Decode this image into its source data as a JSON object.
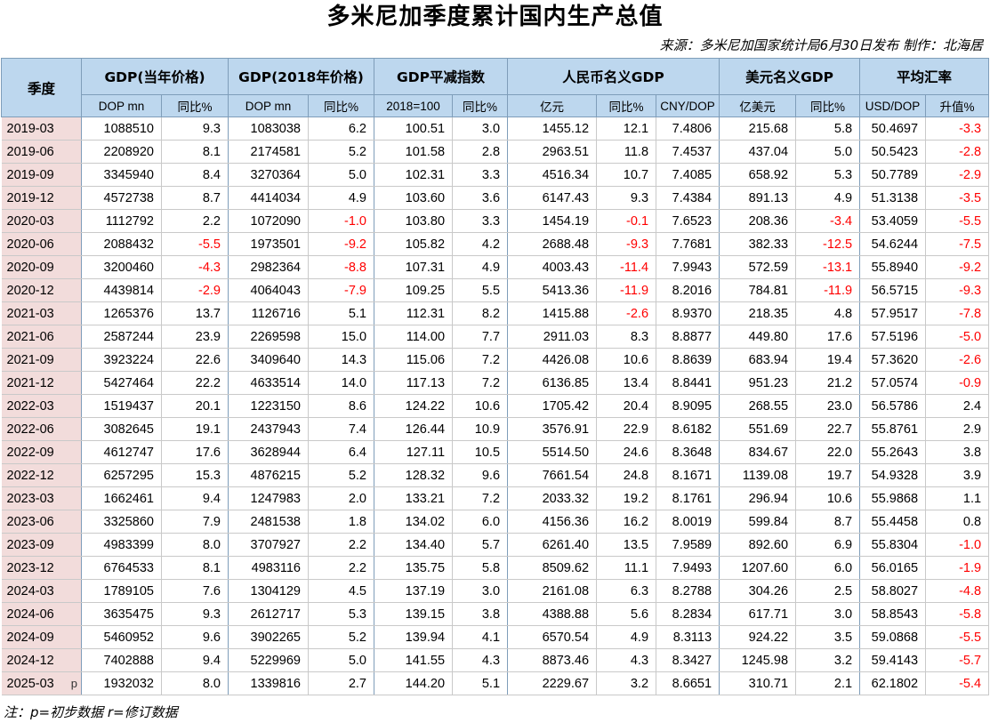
{
  "title": "多米尼加季度累计国内生产总值",
  "source": "来源：多米尼加国家统计局6月30日发布 制作：北海居",
  "headers": {
    "quarter": "季度",
    "groups": [
      {
        "label": "GDP(当年价格)",
        "subs": [
          "DOP mn",
          "同比%"
        ]
      },
      {
        "label": "GDP(2018年价格)",
        "subs": [
          "DOP mn",
          "同比%"
        ]
      },
      {
        "label": "GDP平减指数",
        "subs": [
          "2018=100",
          "同比%"
        ]
      },
      {
        "label": "人民币名义GDP",
        "subs": [
          "亿元",
          "同比%",
          "CNY/DOP"
        ]
      },
      {
        "label": "美元名义GDP",
        "subs": [
          "亿美元",
          "同比%"
        ]
      },
      {
        "label": "平均汇率",
        "subs": [
          "USD/DOP",
          "升值%"
        ]
      }
    ]
  },
  "rows": [
    [
      "2019-03",
      "",
      "1088510",
      "9.3",
      "1083038",
      "6.2",
      "100.51",
      "3.0",
      "1455.12",
      "12.1",
      "7.4806",
      "215.68",
      "5.8",
      "50.4697",
      "-3.3"
    ],
    [
      "2019-06",
      "",
      "2208920",
      "8.1",
      "2174581",
      "5.2",
      "101.58",
      "2.8",
      "2963.51",
      "11.8",
      "7.4537",
      "437.04",
      "5.0",
      "50.5423",
      "-2.8"
    ],
    [
      "2019-09",
      "",
      "3345940",
      "8.4",
      "3270364",
      "5.0",
      "102.31",
      "3.3",
      "4516.34",
      "10.7",
      "7.4085",
      "658.92",
      "5.3",
      "50.7789",
      "-2.9"
    ],
    [
      "2019-12",
      "",
      "4572738",
      "8.7",
      "4414034",
      "4.9",
      "103.60",
      "3.6",
      "6147.43",
      "9.3",
      "7.4384",
      "891.13",
      "4.9",
      "51.3138",
      "-3.5"
    ],
    [
      "2020-03",
      "",
      "1112792",
      "2.2",
      "1072090",
      "-1.0",
      "103.80",
      "3.3",
      "1454.19",
      "-0.1",
      "7.6523",
      "208.36",
      "-3.4",
      "53.4059",
      "-5.5"
    ],
    [
      "2020-06",
      "",
      "2088432",
      "-5.5",
      "1973501",
      "-9.2",
      "105.82",
      "4.2",
      "2688.48",
      "-9.3",
      "7.7681",
      "382.33",
      "-12.5",
      "54.6244",
      "-7.5"
    ],
    [
      "2020-09",
      "",
      "3200460",
      "-4.3",
      "2982364",
      "-8.8",
      "107.31",
      "4.9",
      "4003.43",
      "-11.4",
      "7.9943",
      "572.59",
      "-13.1",
      "55.8940",
      "-9.2"
    ],
    [
      "2020-12",
      "",
      "4439814",
      "-2.9",
      "4064043",
      "-7.9",
      "109.25",
      "5.5",
      "5413.36",
      "-11.9",
      "8.2016",
      "784.81",
      "-11.9",
      "56.5715",
      "-9.3"
    ],
    [
      "2021-03",
      "",
      "1265376",
      "13.7",
      "1126716",
      "5.1",
      "112.31",
      "8.2",
      "1415.88",
      "-2.6",
      "8.9370",
      "218.35",
      "4.8",
      "57.9517",
      "-7.8"
    ],
    [
      "2021-06",
      "",
      "2587244",
      "23.9",
      "2269598",
      "15.0",
      "114.00",
      "7.7",
      "2911.03",
      "8.3",
      "8.8877",
      "449.80",
      "17.6",
      "57.5196",
      "-5.0"
    ],
    [
      "2021-09",
      "",
      "3923224",
      "22.6",
      "3409640",
      "14.3",
      "115.06",
      "7.2",
      "4426.08",
      "10.6",
      "8.8639",
      "683.94",
      "19.4",
      "57.3620",
      "-2.6"
    ],
    [
      "2021-12",
      "",
      "5427464",
      "22.2",
      "4633514",
      "14.0",
      "117.13",
      "7.2",
      "6136.85",
      "13.4",
      "8.8441",
      "951.23",
      "21.2",
      "57.0574",
      "-0.9"
    ],
    [
      "2022-03",
      "",
      "1519437",
      "20.1",
      "1223150",
      "8.6",
      "124.22",
      "10.6",
      "1705.42",
      "20.4",
      "8.9095",
      "268.55",
      "23.0",
      "56.5786",
      "2.4"
    ],
    [
      "2022-06",
      "",
      "3082645",
      "19.1",
      "2437943",
      "7.4",
      "126.44",
      "10.9",
      "3576.91",
      "22.9",
      "8.6182",
      "551.69",
      "22.7",
      "55.8761",
      "2.9"
    ],
    [
      "2022-09",
      "",
      "4612747",
      "17.6",
      "3628944",
      "6.4",
      "127.11",
      "10.5",
      "5514.50",
      "24.6",
      "8.3648",
      "834.67",
      "22.0",
      "55.2643",
      "3.8"
    ],
    [
      "2022-12",
      "",
      "6257295",
      "15.3",
      "4876215",
      "5.2",
      "128.32",
      "9.6",
      "7661.54",
      "24.8",
      "8.1671",
      "1139.08",
      "19.7",
      "54.9328",
      "3.9"
    ],
    [
      "2023-03",
      "",
      "1662461",
      "9.4",
      "1247983",
      "2.0",
      "133.21",
      "7.2",
      "2033.32",
      "19.2",
      "8.1761",
      "296.94",
      "10.6",
      "55.9868",
      "1.1"
    ],
    [
      "2023-06",
      "",
      "3325860",
      "7.9",
      "2481538",
      "1.8",
      "134.02",
      "6.0",
      "4156.36",
      "16.2",
      "8.0019",
      "599.84",
      "8.7",
      "55.4458",
      "0.8"
    ],
    [
      "2023-09",
      "",
      "4983399",
      "8.0",
      "3707927",
      "2.2",
      "134.40",
      "5.7",
      "6261.40",
      "13.5",
      "7.9589",
      "892.60",
      "6.9",
      "55.8304",
      "-1.0"
    ],
    [
      "2023-12",
      "",
      "6764533",
      "8.1",
      "4983116",
      "2.2",
      "135.75",
      "5.8",
      "8509.62",
      "11.1",
      "7.9493",
      "1207.60",
      "6.0",
      "56.0165",
      "-1.9"
    ],
    [
      "2024-03",
      "",
      "1789105",
      "7.6",
      "1304129",
      "4.5",
      "137.19",
      "3.0",
      "2161.08",
      "6.3",
      "8.2788",
      "304.26",
      "2.5",
      "58.8027",
      "-4.8"
    ],
    [
      "2024-06",
      "",
      "3635475",
      "9.3",
      "2612717",
      "5.3",
      "139.15",
      "3.8",
      "4388.88",
      "5.6",
      "8.2834",
      "617.71",
      "3.0",
      "58.8543",
      "-5.8"
    ],
    [
      "2024-09",
      "",
      "5460952",
      "9.6",
      "3902265",
      "5.2",
      "139.94",
      "4.1",
      "6570.54",
      "4.9",
      "8.3113",
      "924.22",
      "3.5",
      "59.0868",
      "-5.5"
    ],
    [
      "2024-12",
      "",
      "7402888",
      "9.4",
      "5229969",
      "5.0",
      "141.55",
      "4.3",
      "8873.46",
      "4.3",
      "8.3427",
      "1245.98",
      "3.2",
      "59.4143",
      "-5.7"
    ],
    [
      "2025-03",
      "p",
      "1932032",
      "8.0",
      "1339816",
      "2.7",
      "144.20",
      "5.1",
      "2229.67",
      "3.2",
      "8.6651",
      "310.71",
      "2.1",
      "62.1802",
      "-5.4"
    ]
  ],
  "note": "注：p=初步数据 r=修订数据",
  "colors": {
    "header_bg": "#bdd7ee",
    "quarter_bg": "#f2dcdb",
    "negative": "#ff0000"
  }
}
